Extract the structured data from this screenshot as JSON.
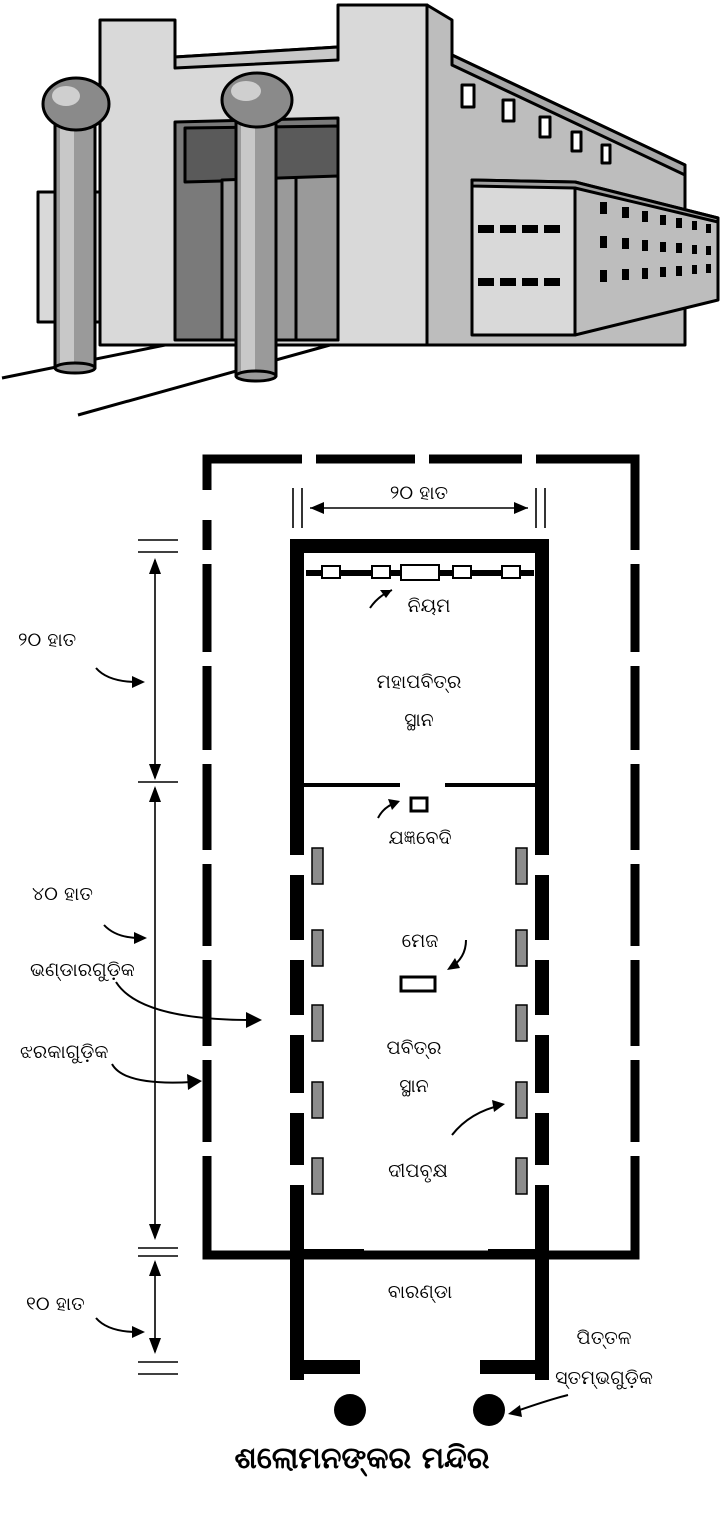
{
  "title": "ଶଲୋମନଙ୍କର ମନ୍ଦିର",
  "labels": {
    "width_top": "୨୦ ହାତ",
    "law": "ନିୟମ",
    "holy_of_holies_line1": "ମହାପବିତ୍ର",
    "holy_of_holies_line2": "ସ୍ଥାନ",
    "altar": "ଯଜ୍ଞବେଦି",
    "table": "ମେଜ",
    "holy_place_line1": "ପବିତ୍ର",
    "holy_place_line2": "ସ୍ଥାନ",
    "lampstand": "ଦୀପବୃକ୍ଷ",
    "porch": "ବାରଣ୍ଡା",
    "pillars_line1": "ପିତ୍ତଳ",
    "pillars_line2": "ସ୍ତମ୍ଭଗୁଡ଼ିକ",
    "dim_inner": "୨୦ ହାତ",
    "dim_holy": "୪୦ ହାତ",
    "storerooms": "ଭଣ୍ଡାରଗୁଡ଼ିକ",
    "windows": "ଝରକାଗୁଡ଼ିକ",
    "dim_porch": "୧୦ ହାତ"
  },
  "colors": {
    "wall": "#000000",
    "building_light": "#d9d9d9",
    "building_mid": "#bdbdbd",
    "building_dark": "#7a7a7a",
    "lamp": "#8c8c8c"
  }
}
